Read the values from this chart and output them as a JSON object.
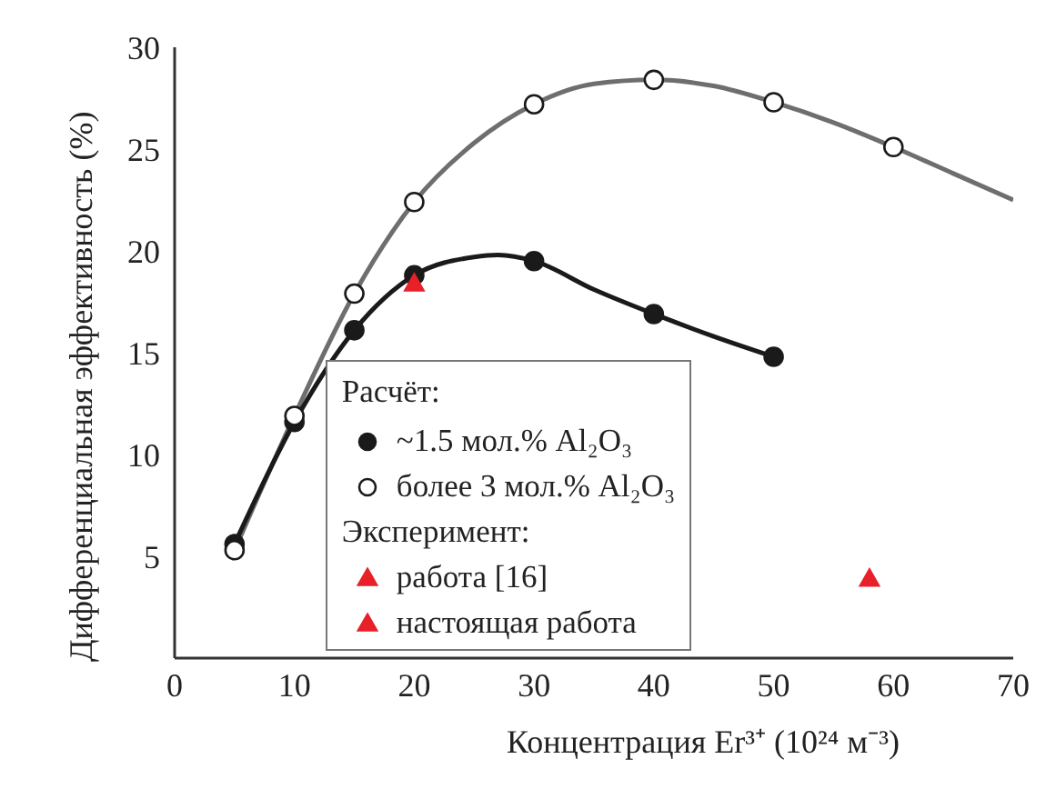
{
  "chart_data": {
    "type": "scatter",
    "xlabel": "Концентрация Er³⁺ (10²⁴ м⁻³)",
    "ylabel": "Дифференциальная эффективность (%)",
    "xlim": [
      0,
      70
    ],
    "xticks": [
      0,
      10,
      20,
      30,
      40,
      50,
      60,
      70
    ],
    "ylim": [
      0,
      30
    ],
    "yticks": [
      5,
      10,
      15,
      20,
      25,
      30
    ],
    "grid": false,
    "legend": "bottom",
    "legend_title": "Расчёт:",
    "annotations": [
      "Эксперимент:"
    ],
    "series": [
      {
        "type": "line",
        "color": "#6e6e6e",
        "marker": "none",
        "x": [
          5,
          10,
          15,
          20,
          25,
          30,
          35,
          40,
          45,
          50,
          55,
          60,
          65,
          70
        ],
        "values": [
          5.3,
          11.9,
          17.9,
          22.4,
          25.3,
          27.2,
          28.2,
          28.4,
          28.1,
          27.3,
          26.3,
          25.1,
          23.8,
          22.5
        ]
      },
      {
        "type": "line",
        "color": "#1a1a1a",
        "marker": "none",
        "x": [
          5,
          10,
          15,
          20,
          25,
          27,
          30,
          35,
          40,
          45,
          50
        ],
        "values": [
          5.6,
          11.6,
          16.1,
          18.8,
          19.7,
          19.8,
          19.5,
          18.1,
          16.9,
          15.8,
          14.8
        ]
      },
      {
        "name": "~1.5 мол.% Al₂O₃",
        "color": "#1a1a1a",
        "marker": "circle",
        "x": [
          5,
          10,
          15,
          20,
          30,
          40,
          50
        ],
        "values": [
          5.6,
          11.6,
          16.1,
          18.8,
          19.5,
          16.9,
          14.8
        ]
      },
      {
        "name": "более 3 мол.% Al₂O₃",
        "color": "#ffffff",
        "marker": "circle",
        "x": [
          5,
          10,
          15,
          20,
          30,
          40,
          50,
          60
        ],
        "values": [
          5.3,
          11.9,
          17.9,
          22.4,
          27.2,
          28.4,
          27.3,
          25.1
        ]
      },
      {
        "name": "работа [16]",
        "color": "#e8202a",
        "marker": "triangle",
        "x": [
          58
        ],
        "values": [
          3.9
        ]
      },
      {
        "name": "настоящая работа",
        "color": "#e8202a",
        "marker": "triangle",
        "x": [
          20
        ],
        "values": [
          18.4
        ]
      }
    ]
  }
}
